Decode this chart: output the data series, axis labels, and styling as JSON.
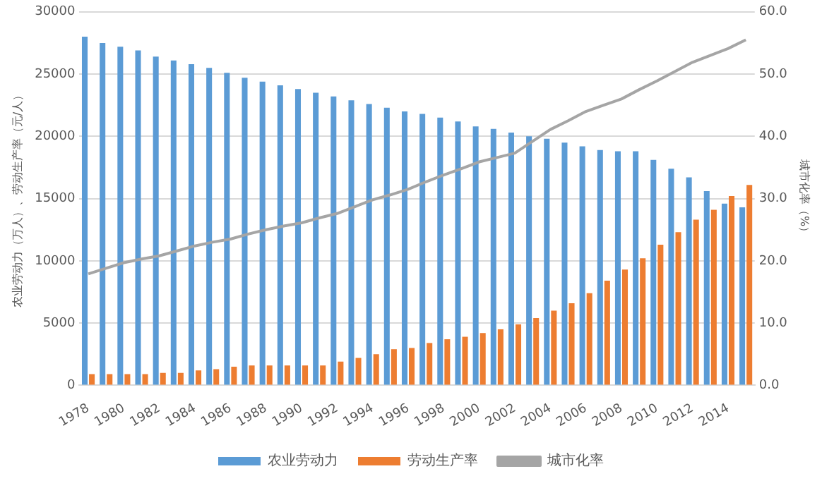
{
  "chart_data": {
    "type": "bar",
    "categories": [
      "1978",
      null,
      "1980",
      null,
      "1982",
      null,
      "1984",
      null,
      "1986",
      null,
      "1988",
      null,
      "1990",
      null,
      "1992",
      null,
      "1994",
      null,
      "1996",
      null,
      "1998",
      null,
      "2000",
      null,
      "2002",
      null,
      "2004",
      null,
      "2006",
      null,
      "2008",
      null,
      "2010",
      null,
      "2012",
      null,
      "2014",
      null
    ],
    "series": [
      {
        "name": "农业劳动力",
        "color": "#5b9bd5",
        "values": [
          28000,
          27500,
          27200,
          26900,
          26400,
          26100,
          25800,
          25500,
          25100,
          24700,
          24400,
          24100,
          23800,
          23500,
          23200,
          22900,
          22600,
          22300,
          22000,
          21800,
          21500,
          21200,
          20800,
          20600,
          20300,
          20000,
          19800,
          19500,
          19200,
          18900,
          18800,
          18800,
          18100,
          17400,
          16700,
          15600,
          14600,
          14300
        ]
      },
      {
        "name": "劳动生产率",
        "color": "#ed7d31",
        "values": [
          900,
          900,
          900,
          900,
          1000,
          1000,
          1200,
          1300,
          1500,
          1600,
          1600,
          1600,
          1600,
          1600,
          1900,
          2200,
          2500,
          2900,
          3000,
          3400,
          3700,
          3900,
          4200,
          4500,
          4900,
          5400,
          6000,
          6600,
          7400,
          8400,
          9300,
          10200,
          11300,
          12300,
          13300,
          14100,
          15200,
          16100
        ]
      },
      {
        "name": "城市化率",
        "type": "line",
        "axis": "y2",
        "color": "#a5a5a5",
        "values": [
          17.9,
          18.8,
          19.7,
          20.3,
          20.8,
          21.6,
          22.4,
          23.0,
          23.5,
          24.3,
          25.0,
          25.6,
          26.1,
          26.9,
          27.6,
          28.7,
          29.8,
          30.6,
          31.5,
          32.7,
          33.8,
          34.8,
          35.9,
          36.6,
          37.3,
          39.2,
          41.1,
          42.5,
          44.0,
          45.0,
          46.0,
          47.5,
          48.9,
          50.4,
          51.9,
          53.0,
          54.1,
          55.5
        ]
      }
    ],
    "ylabel": "农业劳动力（万人）、劳动生产率（元/人）",
    "y2label": "城市化率（%）",
    "ylim": [
      0,
      30000
    ],
    "yticks": [
      0,
      5000,
      10000,
      15000,
      20000,
      25000,
      30000
    ],
    "y2lim": [
      0,
      60
    ],
    "y2ticks": [
      {
        "value": 0,
        "label": "0.0"
      },
      {
        "value": 10,
        "label": "10.0"
      },
      {
        "value": 20,
        "label": "20.0"
      },
      {
        "value": 30,
        "label": "30.0"
      },
      {
        "value": 40,
        "label": "40.0"
      },
      {
        "value": 50,
        "label": "50.0"
      },
      {
        "value": 60,
        "label": "60.0"
      }
    ],
    "grid": "y",
    "legend": "bottom",
    "marker": "none",
    "line_style": "solid"
  }
}
